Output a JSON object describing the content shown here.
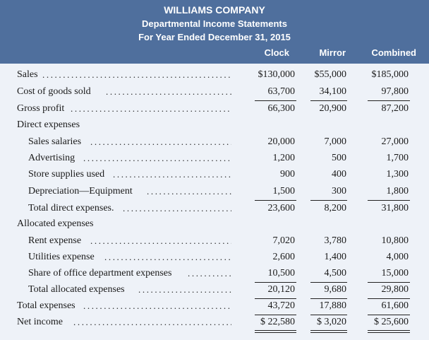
{
  "header": {
    "company": "WILLIAMS COMPANY",
    "statement": "Departmental Income Statements",
    "period": "For Year Ended December 31, 2015",
    "columns": [
      "Clock",
      "Mirror",
      "Combined"
    ]
  },
  "rows": [
    {
      "label": "Sales",
      "clock": "$130,000",
      "mirror": "$55,000",
      "combined": "$185,000"
    },
    {
      "label": "Cost of goods sold",
      "clock": "63,700",
      "mirror": "34,100",
      "combined": "97,800"
    },
    {
      "label": "Gross profit",
      "clock": "66,300",
      "mirror": "20,900",
      "combined": "87,200"
    },
    {
      "label": "Direct expenses",
      "clock": "",
      "mirror": "",
      "combined": ""
    },
    {
      "label": "Sales salaries",
      "clock": "20,000",
      "mirror": "7,000",
      "combined": "27,000"
    },
    {
      "label": "Advertising",
      "clock": "1,200",
      "mirror": "500",
      "combined": "1,700"
    },
    {
      "label": "Store supplies used",
      "clock": "900",
      "mirror": "400",
      "combined": "1,300"
    },
    {
      "label": "Depreciation—Equipment",
      "clock": "1,500",
      "mirror": "300",
      "combined": "1,800"
    },
    {
      "label": "Total direct expenses.",
      "clock": "23,600",
      "mirror": "8,200",
      "combined": "31,800"
    },
    {
      "label": "Allocated expenses",
      "clock": "",
      "mirror": "",
      "combined": ""
    },
    {
      "label": "Rent expense",
      "clock": "7,020",
      "mirror": "3,780",
      "combined": "10,800"
    },
    {
      "label": "Utilities expense",
      "clock": "2,600",
      "mirror": "1,400",
      "combined": "4,000"
    },
    {
      "label": "Share of office department expenses",
      "clock": "10,500",
      "mirror": "4,500",
      "combined": "15,000"
    },
    {
      "label": "Total allocated expenses",
      "clock": "20,120",
      "mirror": "9,680",
      "combined": "29,800"
    },
    {
      "label": "Total expenses",
      "clock": "43,720",
      "mirror": "17,880",
      "combined": "61,600"
    },
    {
      "label": "Net income",
      "clock": "$ 22,580",
      "mirror": "$ 3,020",
      "combined": "$ 25,600"
    }
  ]
}
